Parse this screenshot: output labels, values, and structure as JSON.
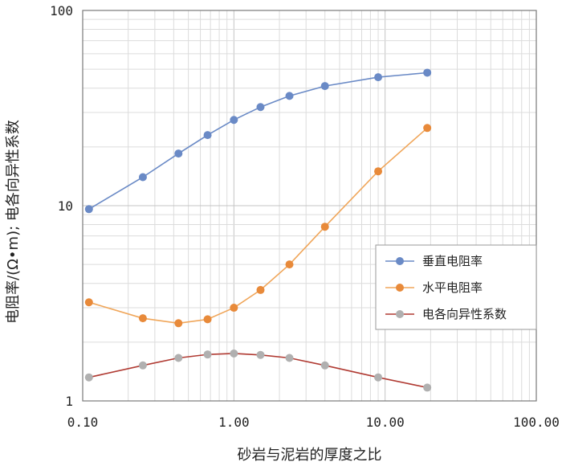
{
  "chart_data": {
    "type": "line",
    "xlabel": "砂岩与泥岩的厚度之比",
    "ylabel": "电阻率/(Ω•m); 电各向异性系数",
    "x_scale": "log",
    "y_scale": "log",
    "xlim": [
      0.1,
      100
    ],
    "ylim": [
      1,
      100
    ],
    "x_ticks": [
      {
        "value": 0.1,
        "label": "0.10"
      },
      {
        "value": 1,
        "label": "1.00"
      },
      {
        "value": 10,
        "label": "10.00"
      },
      {
        "value": 100,
        "label": "100.00"
      }
    ],
    "y_ticks": [
      {
        "value": 1,
        "label": "1"
      },
      {
        "value": 10,
        "label": "10"
      },
      {
        "value": 100,
        "label": "100"
      }
    ],
    "grid": true,
    "legend_position": "right",
    "x": [
      0.11,
      0.25,
      0.43,
      0.67,
      1.0,
      1.5,
      2.33,
      4.0,
      9.0,
      19.0
    ],
    "series": [
      {
        "name": "垂直电阻率",
        "color": "#6a8ac6",
        "marker_color": "#6a8ac6",
        "values": [
          9.6,
          14.0,
          18.5,
          23.0,
          27.5,
          32.0,
          36.5,
          41.0,
          45.5,
          48.0
        ]
      },
      {
        "name": "水平电阻率",
        "color": "#f0a65a",
        "marker_color": "#e88a3a",
        "values": [
          3.2,
          2.65,
          2.5,
          2.62,
          3.0,
          3.7,
          5.0,
          7.8,
          15.0,
          25.0
        ]
      },
      {
        "name": "电各向异性系数",
        "color": "#b03a32",
        "marker_color": "#b0b0b0",
        "values": [
          1.32,
          1.52,
          1.66,
          1.73,
          1.75,
          1.72,
          1.66,
          1.52,
          1.32,
          1.17
        ]
      }
    ]
  }
}
